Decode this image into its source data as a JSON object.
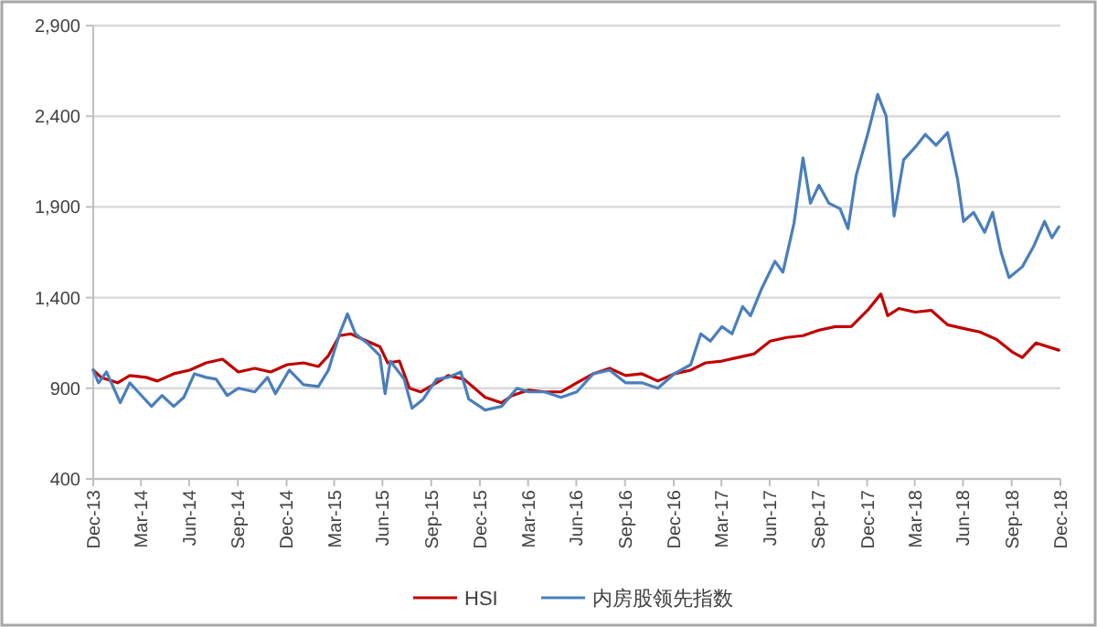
{
  "chart_data": {
    "type": "line",
    "xlim": [
      "2013-12-31",
      "2018-12-31"
    ],
    "xticks": [
      {
        "value": "2013-12-31",
        "label": "Dec-13"
      },
      {
        "value": "2014-03-31",
        "label": "Mar-14"
      },
      {
        "value": "2014-06-30",
        "label": "Jun-14"
      },
      {
        "value": "2014-09-30",
        "label": "Sep-14"
      },
      {
        "value": "2014-12-31",
        "label": "Dec-14"
      },
      {
        "value": "2015-03-31",
        "label": "Mar-15"
      },
      {
        "value": "2015-06-30",
        "label": "Jun-15"
      },
      {
        "value": "2015-09-30",
        "label": "Sep-15"
      },
      {
        "value": "2015-12-31",
        "label": "Dec-15"
      },
      {
        "value": "2016-03-31",
        "label": "Mar-16"
      },
      {
        "value": "2016-06-30",
        "label": "Jun-16"
      },
      {
        "value": "2016-09-30",
        "label": "Sep-16"
      },
      {
        "value": "2016-12-31",
        "label": "Dec-16"
      },
      {
        "value": "2017-03-31",
        "label": "Mar-17"
      },
      {
        "value": "2017-06-30",
        "label": "Jun-17"
      },
      {
        "value": "2017-09-30",
        "label": "Sep-17"
      },
      {
        "value": "2017-12-31",
        "label": "Dec-17"
      },
      {
        "value": "2018-03-31",
        "label": "Mar-18"
      },
      {
        "value": "2018-06-30",
        "label": "Jun-18"
      },
      {
        "value": "2018-09-30",
        "label": "Sep-18"
      },
      {
        "value": "2018-12-31",
        "label": "Dec-18"
      }
    ],
    "ylim": [
      400,
      2900
    ],
    "yticks": [
      400,
      900,
      {
        "value": 1400,
        "label": "1,400"
      },
      {
        "value": 1900,
        "label": "1,900"
      },
      {
        "value": 2400,
        "label": "2,400"
      },
      {
        "value": 2900,
        "label": "2,900"
      }
    ],
    "grid": "y",
    "legend": "bottom",
    "marker": "none",
    "line_style": "solid",
    "series": [
      {
        "name": "HSI",
        "color": "#c00000",
        "x": [
          "2013-12-31",
          "2014-01-15",
          "2014-02-15",
          "2014-03-10",
          "2014-04-10",
          "2014-05-01",
          "2014-06-01",
          "2014-07-01",
          "2014-08-01",
          "2014-09-01",
          "2014-10-01",
          "2014-11-01",
          "2014-12-01",
          "2015-01-01",
          "2015-02-01",
          "2015-03-01",
          "2015-03-20",
          "2015-04-10",
          "2015-05-01",
          "2015-06-01",
          "2015-06-25",
          "2015-07-10",
          "2015-08-01",
          "2015-08-20",
          "2015-09-10",
          "2015-10-10",
          "2015-11-01",
          "2015-12-01",
          "2016-01-10",
          "2016-02-10",
          "2016-03-01",
          "2016-04-01",
          "2016-05-01",
          "2016-06-01",
          "2016-07-01",
          "2016-08-01",
          "2016-09-01",
          "2016-10-01",
          "2016-11-01",
          "2016-12-01",
          "2017-01-01",
          "2017-02-01",
          "2017-03-01",
          "2017-04-01",
          "2017-05-01",
          "2017-06-01",
          "2017-07-01",
          "2017-08-01",
          "2017-09-01",
          "2017-10-01",
          "2017-11-01",
          "2017-12-01",
          "2018-01-01",
          "2018-01-26",
          "2018-02-08",
          "2018-03-01",
          "2018-04-01",
          "2018-05-01",
          "2018-06-01",
          "2018-07-01",
          "2018-08-01",
          "2018-09-01",
          "2018-10-01",
          "2018-10-20",
          "2018-11-15",
          "2018-12-28"
        ],
        "values": [
          1000,
          960,
          930,
          970,
          960,
          940,
          980,
          1000,
          1040,
          1060,
          990,
          1010,
          990,
          1030,
          1040,
          1020,
          1080,
          1190,
          1200,
          1160,
          1130,
          1040,
          1050,
          900,
          880,
          930,
          970,
          950,
          850,
          820,
          860,
          890,
          880,
          880,
          930,
          980,
          1010,
          970,
          980,
          940,
          980,
          1000,
          1040,
          1050,
          1070,
          1090,
          1160,
          1180,
          1190,
          1220,
          1240,
          1240,
          1330,
          1420,
          1300,
          1340,
          1320,
          1330,
          1250,
          1230,
          1210,
          1170,
          1100,
          1070,
          1150,
          1110
        ]
      },
      {
        "name": "内房股领先指数",
        "color": "#4a7ebb",
        "x": [
          "2013-12-31",
          "2014-01-10",
          "2014-01-25",
          "2014-02-20",
          "2014-03-10",
          "2014-04-01",
          "2014-04-20",
          "2014-05-10",
          "2014-06-01",
          "2014-06-20",
          "2014-07-10",
          "2014-08-01",
          "2014-08-20",
          "2014-09-10",
          "2014-10-01",
          "2014-11-01",
          "2014-11-25",
          "2014-12-10",
          "2015-01-05",
          "2015-02-01",
          "2015-03-01",
          "2015-03-20",
          "2015-04-10",
          "2015-04-25",
          "2015-05-10",
          "2015-06-01",
          "2015-06-25",
          "2015-07-05",
          "2015-07-15",
          "2015-08-10",
          "2015-08-25",
          "2015-09-15",
          "2015-10-10",
          "2015-11-01",
          "2015-11-25",
          "2015-12-10",
          "2016-01-10",
          "2016-02-10",
          "2016-03-10",
          "2016-04-01",
          "2016-05-01",
          "2016-06-01",
          "2016-07-01",
          "2016-08-01",
          "2016-09-01",
          "2016-10-01",
          "2016-11-01",
          "2016-12-01",
          "2017-01-01",
          "2017-02-01",
          "2017-02-20",
          "2017-03-10",
          "2017-04-01",
          "2017-04-20",
          "2017-05-10",
          "2017-05-25",
          "2017-06-15",
          "2017-07-10",
          "2017-07-25",
          "2017-08-15",
          "2017-09-01",
          "2017-09-15",
          "2017-10-01",
          "2017-10-20",
          "2017-11-10",
          "2017-11-25",
          "2017-12-10",
          "2018-01-01",
          "2018-01-20",
          "2018-02-05",
          "2018-02-20",
          "2018-03-10",
          "2018-04-01",
          "2018-04-20",
          "2018-05-10",
          "2018-06-01",
          "2018-06-20",
          "2018-07-01",
          "2018-07-20",
          "2018-08-10",
          "2018-08-25",
          "2018-09-10",
          "2018-09-25",
          "2018-10-20",
          "2018-11-10",
          "2018-12-01",
          "2018-12-15",
          "2018-12-28"
        ],
        "values": [
          1000,
          930,
          990,
          820,
          930,
          860,
          800,
          860,
          800,
          850,
          980,
          960,
          950,
          860,
          900,
          880,
          960,
          870,
          1000,
          920,
          910,
          1000,
          1200,
          1310,
          1200,
          1150,
          1080,
          870,
          1050,
          950,
          790,
          840,
          950,
          960,
          990,
          840,
          780,
          800,
          900,
          880,
          880,
          850,
          880,
          980,
          1000,
          930,
          930,
          900,
          980,
          1030,
          1200,
          1160,
          1240,
          1200,
          1350,
          1300,
          1450,
          1600,
          1540,
          1810,
          2170,
          1920,
          2020,
          1920,
          1890,
          1780,
          2070,
          2300,
          2520,
          2400,
          1850,
          2160,
          2230,
          2300,
          2240,
          2310,
          2050,
          1820,
          1870,
          1760,
          1870,
          1650,
          1510,
          1570,
          1680,
          1820,
          1730,
          1790
        ]
      }
    ]
  }
}
